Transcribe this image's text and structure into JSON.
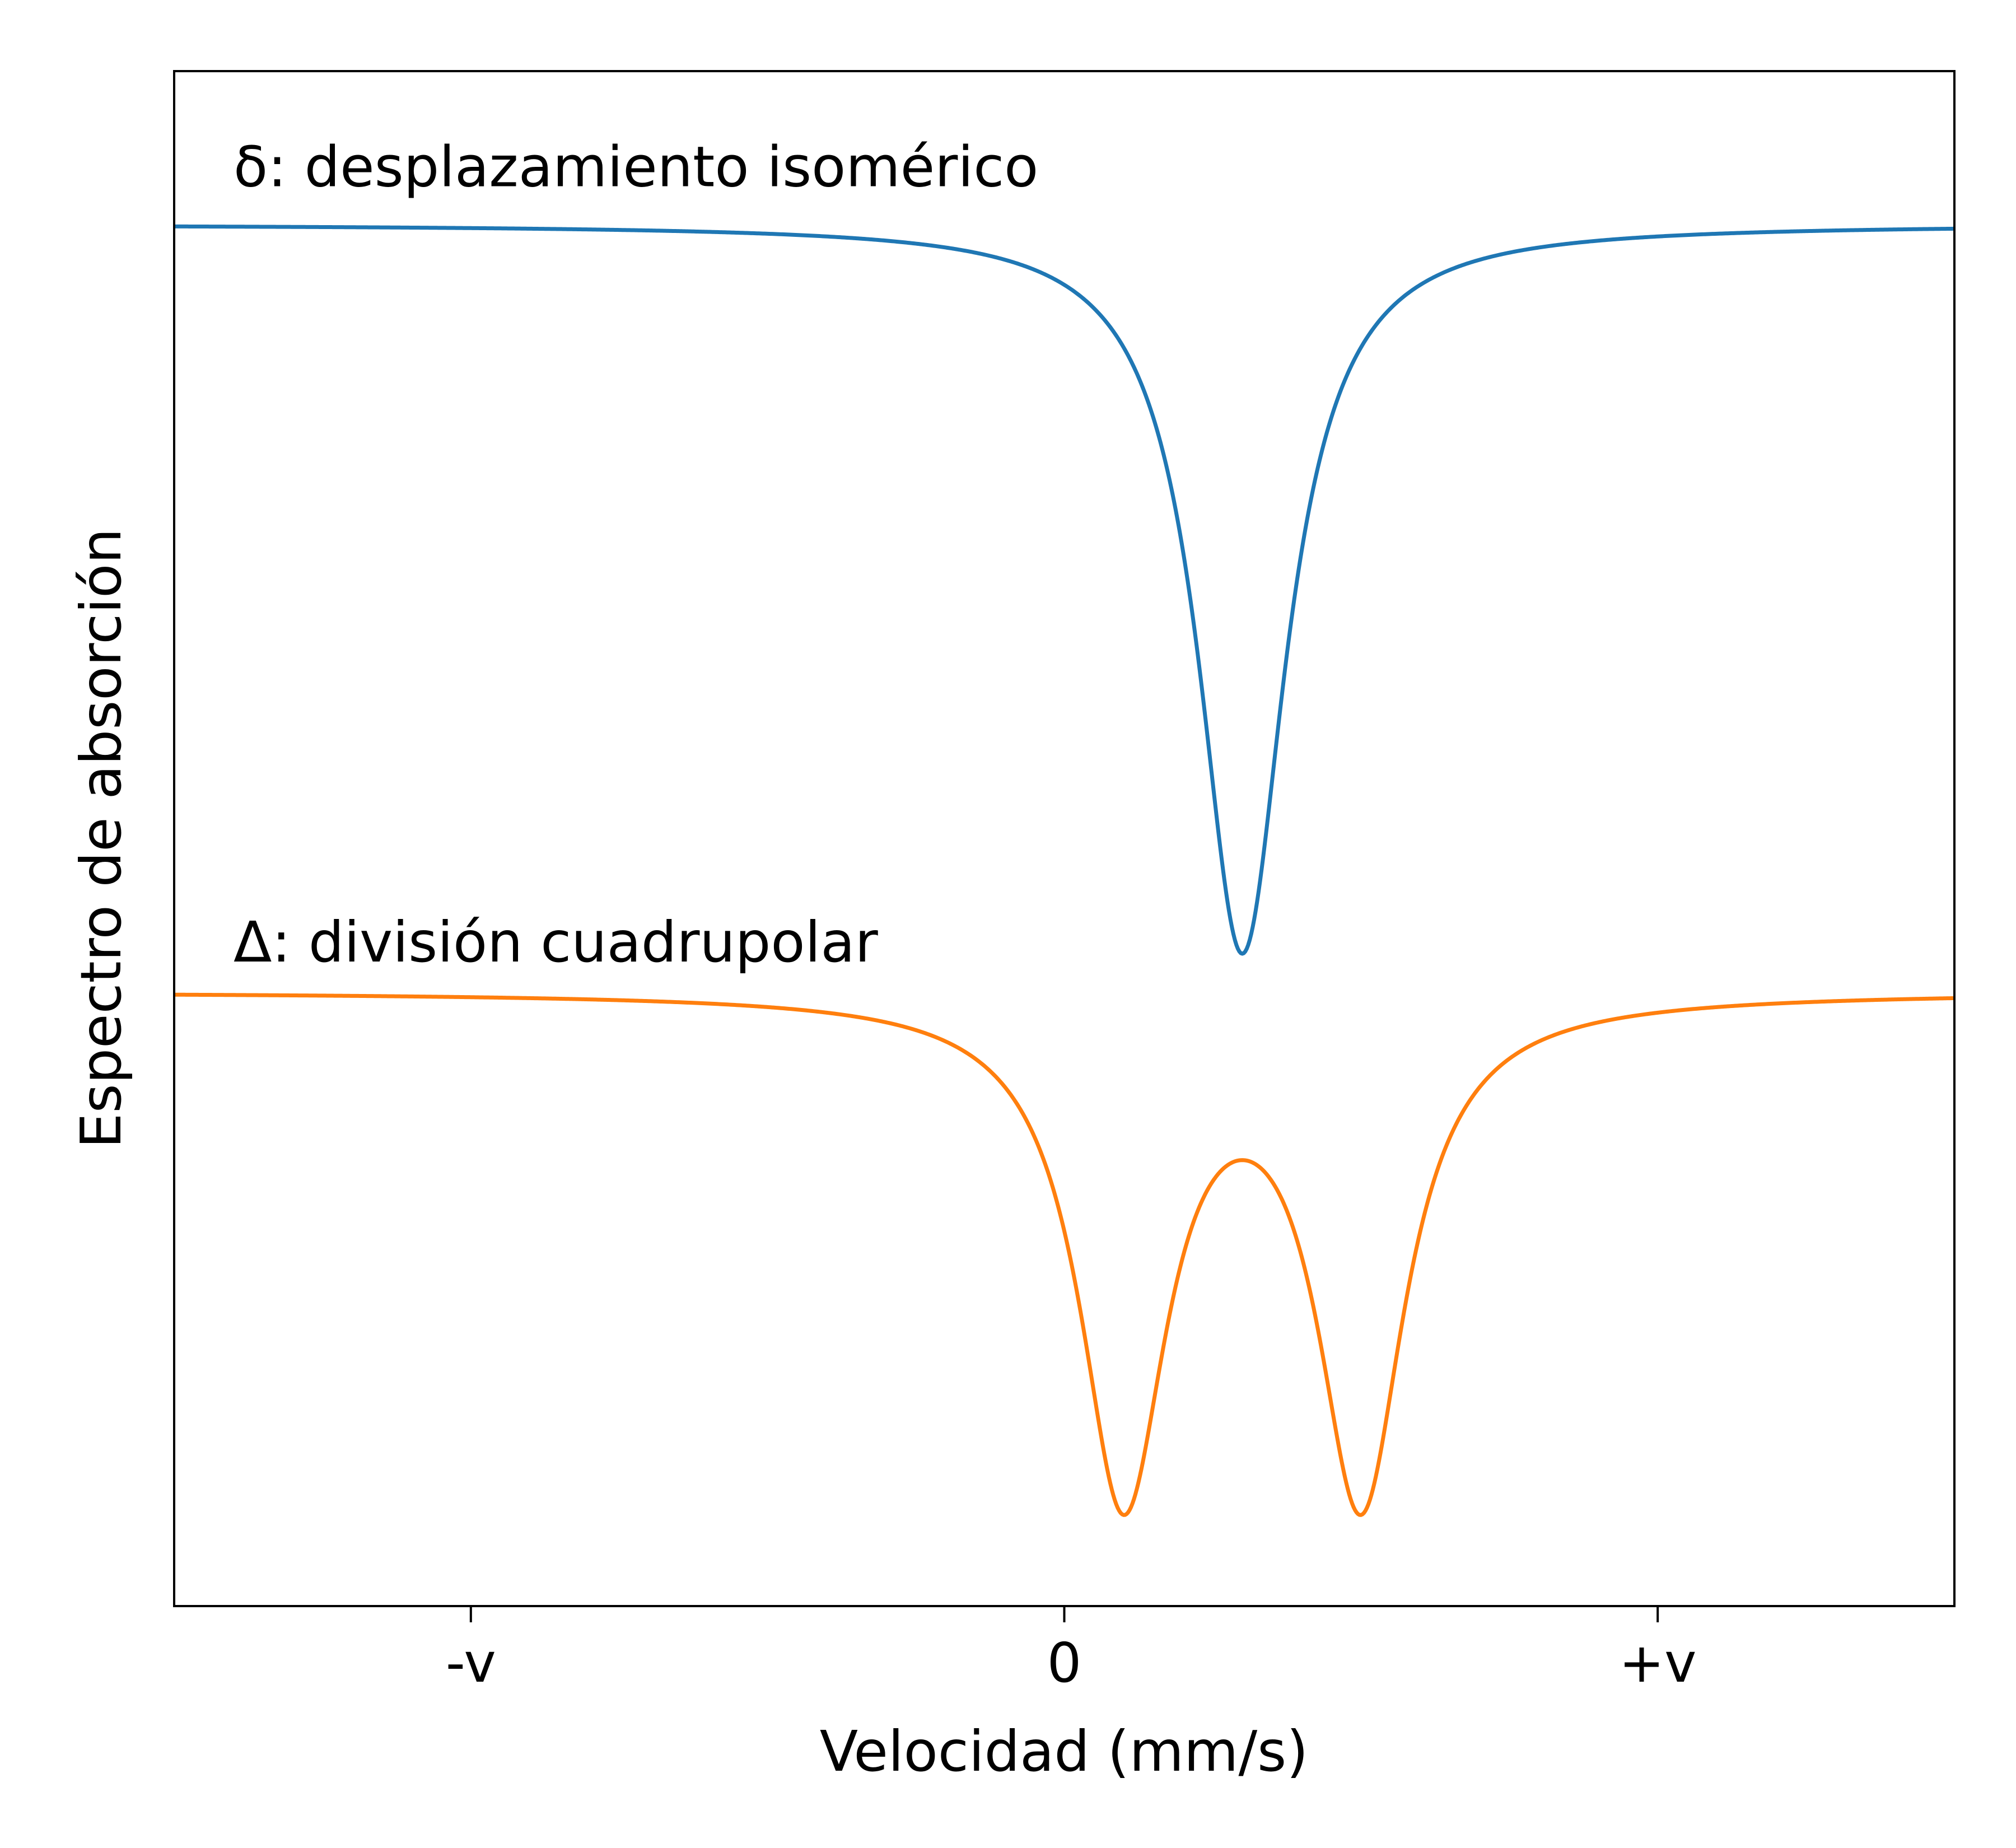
{
  "chart_data": {
    "type": "line",
    "title": "",
    "xlabel": "Velocidad (mm/s)",
    "ylabel": "Espectro de absorción",
    "xlim": [
      -1.5,
      1.5
    ],
    "ylim": [
      -0.05,
      1.95
    ],
    "x_ticks": [
      {
        "value": -1,
        "label": "-v"
      },
      {
        "value": 0,
        "label": "0"
      },
      {
        "value": 1,
        "label": "+v"
      }
    ],
    "grid": false,
    "legend": "none",
    "annotations": [
      {
        "text": "δ: desplazamiento isomérico",
        "x": -1.4,
        "y": 1.8,
        "color": "#000000"
      },
      {
        "text": "Δ: división cuadrupolar",
        "x": -1.4,
        "y": 0.79,
        "color": "#000000"
      }
    ],
    "series": [
      {
        "color": "#1f77b4",
        "baseline": 1.75,
        "peaks": [
          {
            "center": 0.3,
            "gamma": 0.09,
            "depth": 0.95
          }
        ]
      },
      {
        "color": "#ff7f0e",
        "baseline": 0.75,
        "peaks": [
          {
            "center": 0.1,
            "gamma": 0.09,
            "depth": 0.65
          },
          {
            "center": 0.5,
            "gamma": 0.09,
            "depth": 0.65
          }
        ]
      }
    ]
  }
}
